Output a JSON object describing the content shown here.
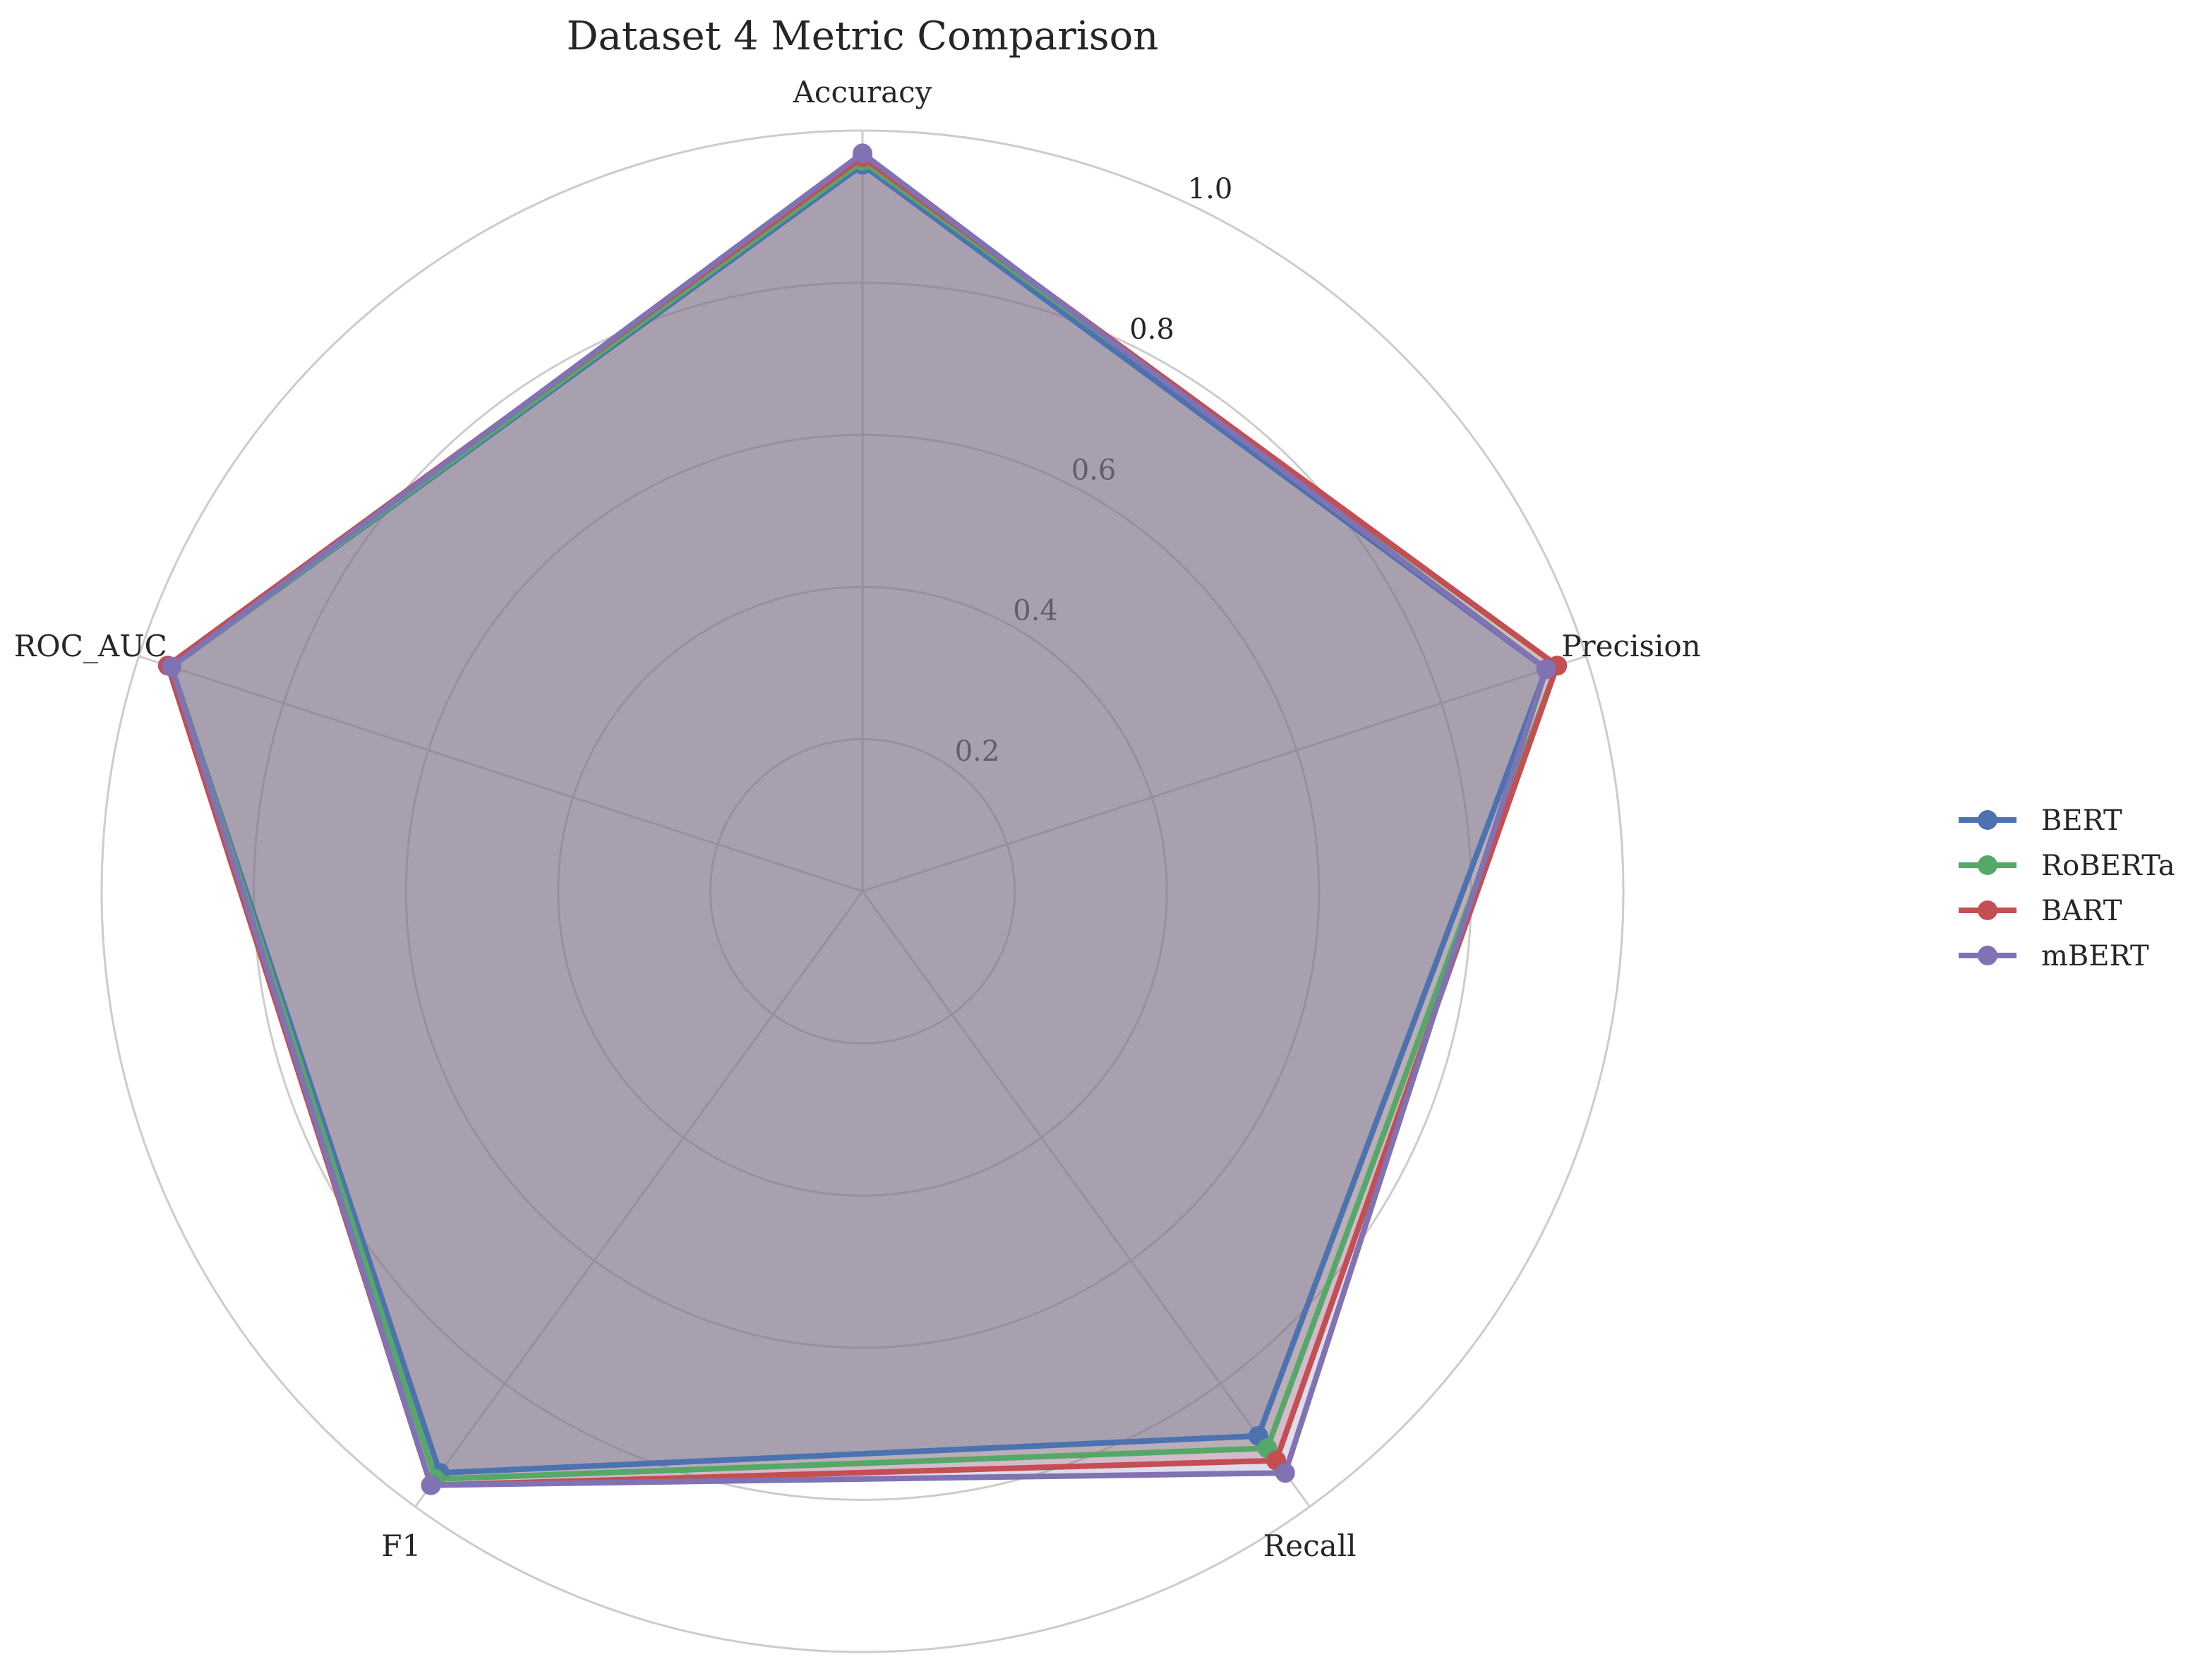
{
  "chart_data": {
    "type": "radar",
    "title": "Dataset 4 Metric Comparison",
    "axes": [
      "Accuracy",
      "Precision",
      "Recall",
      "F1",
      "ROC_AUC"
    ],
    "rlim": [
      0,
      1.0
    ],
    "r_ticks": [
      0.2,
      0.4,
      0.6,
      0.8,
      1.0
    ],
    "r_tick_labels": [
      "0.2",
      "0.4",
      "0.6",
      "0.8",
      "1.0"
    ],
    "grid": true,
    "legend_position": "right",
    "series": [
      {
        "name": "BERT",
        "color": "#4c72b0",
        "values": [
          0.955,
          0.945,
          0.885,
          0.945,
          0.955
        ]
      },
      {
        "name": "RoBERTa",
        "color": "#55a868",
        "values": [
          0.96,
          0.96,
          0.905,
          0.955,
          0.955
        ]
      },
      {
        "name": "BART",
        "color": "#c44e52",
        "values": [
          0.965,
          0.96,
          0.925,
          0.965,
          0.96
        ]
      },
      {
        "name": "mBERT",
        "color": "#8172b3",
        "values": [
          0.97,
          0.945,
          0.945,
          0.965,
          0.955
        ]
      }
    ]
  }
}
